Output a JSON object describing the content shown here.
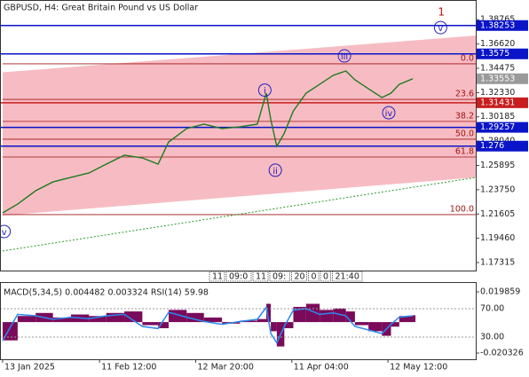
{
  "chart_data": [
    {
      "type": "line",
      "title": "GBPUSD, H4:  Great Britain Pound vs US Dollar",
      "x": [
        0,
        20,
        44,
        67,
        91,
        115,
        138,
        162,
        186,
        207,
        221,
        245,
        268,
        292,
        316,
        339,
        351,
        357,
        365,
        375,
        387,
        404,
        422,
        440,
        457,
        469,
        487,
        505,
        517,
        528,
        546
      ],
      "series": [
        {
          "color": "#1e7a1e",
          "values": [
            1.217,
            1.2248,
            1.2366,
            1.2444,
            1.2484,
            1.2523,
            1.2601,
            1.268,
            1.2656,
            1.2601,
            1.2797,
            1.2915,
            1.2954,
            1.2915,
            1.2931,
            1.2954,
            1.3228,
            1.2993,
            1.2758,
            1.2875,
            1.3071,
            1.3228,
            1.3306,
            1.3385,
            1.3424,
            1.3346,
            1.3267,
            1.3189,
            1.3228,
            1.3306,
            1.33553
          ]
        }
      ],
      "xlim": [
        -3.5,
        631
      ],
      "xticks": [
        {
          "value": 0,
          "label": "13 Jan 2025"
        },
        {
          "value": 129,
          "label": "11 Feb 12:00"
        },
        {
          "value": 257,
          "label": "12 Mar 20:00"
        },
        {
          "value": 385,
          "label": "11 Apr 04:00"
        },
        {
          "value": 513,
          "label": "12 May 12:00"
        }
      ],
      "ylim": [
        1.1661,
        1.40508
      ],
      "yticks": [
        1.38765,
        {
          "value": 1.3662,
          "label": "1.36620"
        },
        1.34475,
        {
          "value": 1.3233,
          "label": "1.32330"
        },
        1.30185,
        {
          "value": 1.2804,
          "label": "1.28040"
        },
        1.25895,
        {
          "value": 1.2375,
          "label": "1.23750"
        },
        1.21605,
        {
          "value": 1.1946,
          "label": "1.19460"
        },
        1.17315
      ],
      "levels": [
        {
          "value": 1.38253,
          "color": "#0a14c8"
        },
        {
          "value": 1.3575,
          "color": "#0a14c8"
        },
        {
          "value": 1.31431,
          "color": "#c81e1e"
        },
        {
          "value": 1.29257,
          "color": "#0a14c8"
        },
        {
          "value": 1.276,
          "color": "#0a14c8"
        }
      ],
      "current_price": 1.33553,
      "fib": {
        "high": 1.3487,
        "low": 1.2155,
        "color": "#a01414",
        "levels": [
          {
            "value": 0,
            "label": "0.0"
          },
          23.6,
          38.2,
          {
            "value": 50,
            "label": "50.0"
          },
          61.8,
          {
            "value": 100,
            "label": "100.0"
          }
        ]
      },
      "channel": {
        "x": [
          0,
          631
        ],
        "upper": [
          1.3412,
          1.3737
        ],
        "lower": [
          1.2147,
          1.2484
        ],
        "color": "#f7b8c0"
      },
      "trendline": {
        "x": [
          0,
          631
        ],
        "y": [
          1.1834,
          1.2484
        ],
        "color": "#2a9a2a"
      },
      "waves": [
        {
          "label": "i",
          "x": 349,
          "y": 1.3255
        },
        {
          "label": "ii",
          "x": 363,
          "y": 1.2547
        },
        {
          "label": "iii",
          "x": 455,
          "y": 1.3557
        },
        {
          "label": "iv",
          "x": 514,
          "y": 1.3055
        },
        {
          "label": "v",
          "x": 583,
          "y": 1.3807
        },
        {
          "label": "1",
          "x": 584,
          "y": 1.3949
        },
        {
          "label": "v",
          "x": 2,
          "y": 1.2006
        }
      ],
      "time_tags": [
        "11",
        "09:0",
        "11",
        "09:",
        "20",
        "0",
        "0",
        "21:40"
      ]
    },
    {
      "type": "macd",
      "title": "MACD(5,34,5) 0.004482 0.003324 RSI(14) 59.98",
      "ylim": [
        -0.024403,
        0.026265
      ],
      "yticks": [
        0.019859,
        -0.020326
      ],
      "y2lim": [
        -1.25,
        107.5
      ],
      "y2ticks": [
        {
          "value": 70,
          "label": "70.00"
        },
        {
          "value": 30,
          "label": "30.00"
        }
      ],
      "series": [
        {
          "color": "#7a0a5a",
          "values": [
            -0.012,
            0.004,
            0.006,
            0.003,
            0.005,
            0.004,
            0.006,
            0.007,
            -0.002,
            -0.004,
            0.008,
            0.006,
            0.003,
            -0.001,
            0.001,
            0.002,
            0.012,
            -0.006,
            -0.016,
            -0.004,
            0.01,
            0.012,
            0.008,
            0.009,
            0.007,
            -0.002,
            -0.006,
            -0.009,
            -0.003,
            0.004,
            0.004482
          ]
        },
        {
          "color": "#2a8af0",
          "axis": "y2",
          "values": [
            25,
            62,
            60,
            55,
            58,
            56,
            60,
            62,
            45,
            42,
            65,
            58,
            52,
            48,
            52,
            55,
            72,
            35,
            22,
            45,
            68,
            70,
            62,
            64,
            60,
            45,
            40,
            35,
            48,
            58,
            59.98
          ]
        }
      ]
    }
  ]
}
